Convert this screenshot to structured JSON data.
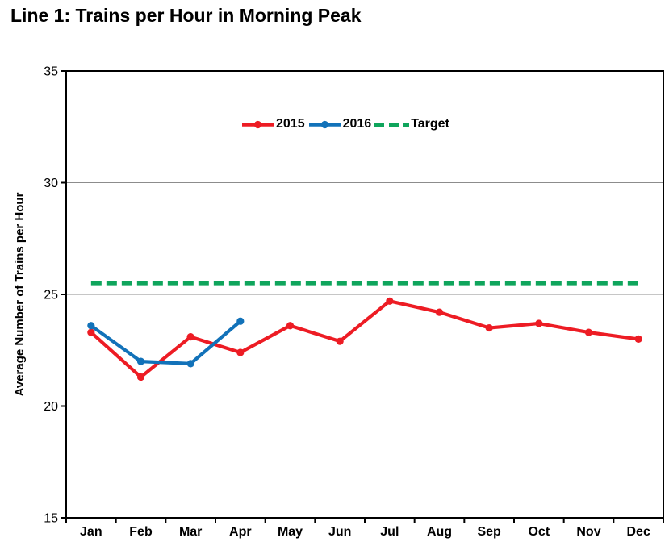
{
  "chart_data": {
    "type": "line",
    "title": "Line 1: Trains per Hour in Morning Peak",
    "xlabel": "",
    "ylabel": "Average Number of Trains per Hour",
    "categories": [
      "Jan",
      "Feb",
      "Mar",
      "Apr",
      "May",
      "Jun",
      "Jul",
      "Aug",
      "Sep",
      "Oct",
      "Nov",
      "Dec"
    ],
    "series": [
      {
        "name": "2015",
        "color": "#ED1C24",
        "line_style": "solid",
        "markers": true,
        "values": [
          23.3,
          21.3,
          23.1,
          22.4,
          23.6,
          22.9,
          24.7,
          24.2,
          23.5,
          23.7,
          23.3,
          23.0
        ]
      },
      {
        "name": "2016",
        "color": "#1272B9",
        "line_style": "solid",
        "markers": true,
        "values": [
          23.6,
          22.0,
          21.9,
          23.8
        ]
      },
      {
        "name": "Target",
        "color": "#0FA55C",
        "line_style": "dashed",
        "markers": false,
        "values": [
          25.5,
          25.5,
          25.5,
          25.5,
          25.5,
          25.5,
          25.5,
          25.5,
          25.5,
          25.5,
          25.5,
          25.5
        ]
      }
    ],
    "ylim": [
      15,
      35
    ],
    "yticks": [
      15,
      20,
      25,
      30,
      35
    ],
    "grid": true,
    "legend_position": "top-center",
    "axis_color": "#000000",
    "grid_color": "#8c8c8c",
    "background_color": "#ffffff"
  }
}
